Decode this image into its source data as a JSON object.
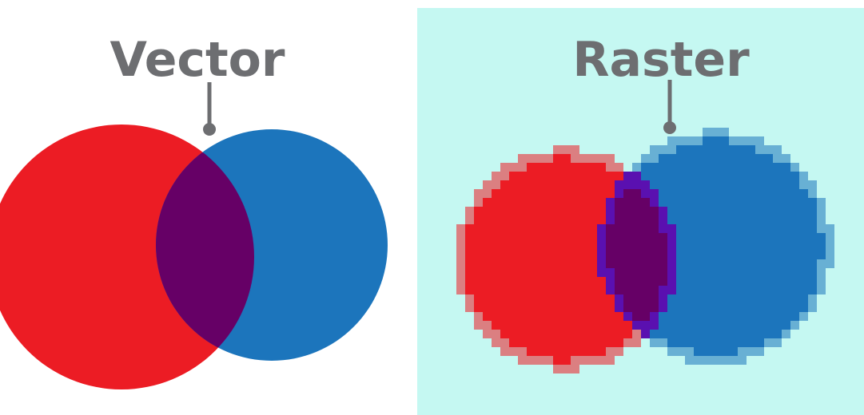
{
  "panels": [
    {
      "title": "Vector"
    },
    {
      "title": "Raster"
    }
  ]
}
